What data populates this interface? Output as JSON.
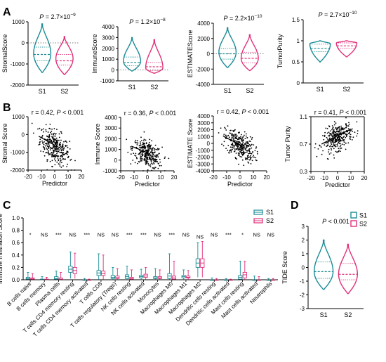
{
  "colors": {
    "S1": "#1a8c96",
    "S2": "#e0307a"
  },
  "panels": {
    "A": "A",
    "B": "B",
    "C": "C",
    "D": "D"
  },
  "chart_data": [
    {
      "type": "violin",
      "panel": "A",
      "ylabel": "StromalScore",
      "annotation_prefix": "P",
      "annotation_value": " = 2.7×10",
      "annotation_exp": "−9",
      "categories": [
        "S1",
        "S2"
      ],
      "ylim": [
        -2000,
        1000
      ],
      "yticks": [
        -2000,
        -1000,
        0,
        1000
      ],
      "reference_line": 0,
      "violins": [
        {
          "group": "S1",
          "min": -1400,
          "q1": -850,
          "median": -550,
          "q3": -200,
          "max": 900,
          "mode": -500
        },
        {
          "group": "S2",
          "min": -1500,
          "q1": -1050,
          "median": -850,
          "q3": -550,
          "max": 300,
          "mode": -750
        }
      ]
    },
    {
      "type": "violin",
      "panel": "A",
      "ylabel": "ImmuneScore",
      "annotation_prefix": "P",
      "annotation_value": " = 1.2×10",
      "annotation_exp": "−8",
      "categories": [
        "S1",
        "S2"
      ],
      "ylim": [
        -1000,
        4000
      ],
      "yticks": [
        -1000,
        0,
        1000,
        2000,
        3000,
        4000
      ],
      "reference_line": 0,
      "violins": [
        {
          "group": "S1",
          "min": -100,
          "q1": 400,
          "median": 700,
          "q3": 1200,
          "max": 3000,
          "mode": 800
        },
        {
          "group": "S2",
          "min": -300,
          "q1": -50,
          "median": 300,
          "q3": 700,
          "max": 2800,
          "mode": 200
        }
      ]
    },
    {
      "type": "violin",
      "panel": "A",
      "ylabel": "ESTIMATEScore",
      "annotation_prefix": "P",
      "annotation_value": " = 2.2×10",
      "annotation_exp": "−10",
      "categories": [
        "S1",
        "S2"
      ],
      "ylim": [
        -4000,
        4000
      ],
      "yticks": [
        -4000,
        -2000,
        0,
        2000,
        4000
      ],
      "reference_line": 0,
      "violins": [
        {
          "group": "S1",
          "min": -1800,
          "q1": -700,
          "median": 0,
          "q3": 700,
          "max": 3400,
          "mode": 200
        },
        {
          "group": "S2",
          "min": -2200,
          "q1": -1200,
          "median": -600,
          "q3": 200,
          "max": 2500,
          "mode": -600
        }
      ]
    },
    {
      "type": "violin",
      "panel": "A",
      "ylabel": "TumorPurity",
      "annotation_prefix": "P",
      "annotation_value": " = 2.7×10",
      "annotation_exp": "−10",
      "categories": [
        "S1",
        "S2"
      ],
      "ylim": [
        0,
        1.5
      ],
      "yticks": [
        0,
        0.5,
        1.0,
        1.5
      ],
      "reference_line": null,
      "violins": [
        {
          "group": "S1",
          "min": 0.5,
          "q1": 0.74,
          "median": 0.82,
          "q3": 0.92,
          "max": 1.0,
          "mode": 0.93
        },
        {
          "group": "S2",
          "min": 0.62,
          "q1": 0.82,
          "median": 0.88,
          "q3": 0.95,
          "max": 1.0,
          "mode": 0.95
        }
      ]
    },
    {
      "type": "scatter",
      "panel": "B",
      "ylabel": "Stromal Score",
      "xlabel": "Predictor",
      "annotation_left": "r = 0.42, ",
      "annotation_p": "P",
      "annotation_right": " < 0.001",
      "xlim": [
        -20,
        20
      ],
      "xticks": [
        -20,
        -10,
        0,
        10,
        20
      ],
      "ylim": [
        -2000,
        1000
      ],
      "yticks": [
        -2000,
        -1000,
        0,
        1000
      ],
      "trend": {
        "x0": -12,
        "y0": -100,
        "x1": 0,
        "y1": -600
      },
      "cloud": {
        "cx": 0,
        "sx": 5.5,
        "cy": -700,
        "sy": 450,
        "slope": -42,
        "n": 320
      }
    },
    {
      "type": "scatter",
      "panel": "B",
      "ylabel": "Immune Score",
      "xlabel": "Predictor",
      "annotation_left": "r = 0.36, ",
      "annotation_p": "P",
      "annotation_right": " < 0.001",
      "xlim": [
        -20,
        20
      ],
      "xticks": [
        -20,
        -10,
        0,
        10,
        20
      ],
      "ylim": [
        -1000,
        4000
      ],
      "yticks": [
        -1000,
        0,
        1000,
        2000,
        3000,
        4000
      ],
      "trend": {
        "x0": -12,
        "y0": 1300,
        "x1": 0,
        "y1": 700
      },
      "cloud": {
        "cx": 0,
        "sx": 5.5,
        "cy": 550,
        "sy": 600,
        "slope": -50,
        "n": 320
      }
    },
    {
      "type": "scatter",
      "panel": "B",
      "ylabel": "ESTIMATE Score",
      "xlabel": "Predictor",
      "annotation_left": "r = 0.42, ",
      "annotation_p": "P",
      "annotation_right": " < 0.001",
      "xlim": [
        -20,
        20
      ],
      "xticks": [
        -20,
        -10,
        0,
        10,
        20
      ],
      "ylim": [
        -4000,
        4000
      ],
      "yticks": [
        -4000,
        -3000,
        -2000,
        -1000,
        0,
        1000,
        2000,
        3000,
        4000
      ],
      "trend": {
        "x0": -12,
        "y0": 1000,
        "x1": 0,
        "y1": -200
      },
      "cloud": {
        "cx": 0,
        "sx": 5.5,
        "cy": -300,
        "sy": 1000,
        "slope": -100,
        "n": 320
      }
    },
    {
      "type": "scatter",
      "panel": "B",
      "ylabel": "Tumor Purity",
      "xlabel": "Predictor",
      "annotation_left": "r = 0.41, ",
      "annotation_p": "P",
      "annotation_right": " < 0.001",
      "xlim": [
        -20,
        20
      ],
      "xticks": [
        -20,
        -10,
        0,
        10,
        20
      ],
      "ylim": [
        0.3,
        1.1
      ],
      "yticks": [
        0.3,
        0.7,
        1.1
      ],
      "yticklabels": [
        "0.3",
        "0.7",
        "1.1"
      ],
      "trend": {
        "x0": -12,
        "y0": 0.7,
        "x1": 10,
        "y1": 0.92
      },
      "cloud": {
        "cx": 0,
        "sx": 5.5,
        "cy": 0.8,
        "sy": 0.09,
        "slope": 0.008,
        "n": 320
      }
    },
    {
      "type": "boxplot",
      "panel": "C",
      "ylabel": "Immune Infiltration Score",
      "ylim": [
        0,
        1.0
      ],
      "yticks": [
        0,
        0.2,
        0.4,
        0.6,
        0.8,
        1.0
      ],
      "yticklabels": [
        "0.0",
        "0.2",
        "0.4",
        "0.6",
        "0.8",
        "1.0"
      ],
      "legend": [
        "S1",
        "S2"
      ],
      "categories": [
        "B cells naive",
        "B cells memory",
        "Plasma cells",
        "T cells CD4 memory resting",
        "T cells CD4 memory activated",
        "T cells CD8",
        "T cells regulatory (Tregs)",
        "NK cells resting",
        "NK cells activated",
        "Monocytes",
        "Macrophages M0",
        "Macrophages M1",
        "Macrophages M2",
        "Dendritic cells resting",
        "Dendritic cells activated",
        "Mast cells resting",
        "Mast cells activated",
        "Neutrophils"
      ],
      "significance": [
        "*",
        "NS",
        "***",
        "NS",
        "***",
        "NS",
        "NS",
        "***",
        "***",
        "NS",
        "***",
        "NS",
        "NS",
        "NS",
        "***",
        "*",
        "NS",
        "NS"
      ],
      "boxes": {
        "S1": [
          [
            0,
            0.01,
            0.02,
            0.04,
            0.12
          ],
          [
            0,
            0,
            0,
            0.01,
            0.05
          ],
          [
            0,
            0.01,
            0.02,
            0.05,
            0.14
          ],
          [
            0.02,
            0.12,
            0.17,
            0.22,
            0.45
          ],
          [
            0,
            0,
            0,
            0,
            0.02
          ],
          [
            0,
            0.07,
            0.11,
            0.15,
            0.42
          ],
          [
            0,
            0.02,
            0.04,
            0.07,
            0.2
          ],
          [
            0,
            0.02,
            0.05,
            0.08,
            0.22
          ],
          [
            0,
            0.03,
            0.05,
            0.07,
            0.17
          ],
          [
            0,
            0.02,
            0.03,
            0.05,
            0.18
          ],
          [
            0,
            0.02,
            0.06,
            0.1,
            0.42
          ],
          [
            0,
            0.03,
            0.05,
            0.07,
            0.16
          ],
          [
            0.04,
            0.2,
            0.27,
            0.34,
            0.6
          ],
          [
            0,
            0,
            0,
            0,
            0.03
          ],
          [
            0,
            0,
            0,
            0,
            0.02
          ],
          [
            0,
            0.01,
            0.04,
            0.07,
            0.3
          ],
          [
            0,
            0,
            0,
            0,
            0.06
          ],
          [
            0,
            0,
            0,
            0,
            0.02
          ]
        ],
        "S2": [
          [
            0,
            0.01,
            0.015,
            0.03,
            0.1
          ],
          [
            0,
            0,
            0,
            0.01,
            0.04
          ],
          [
            0,
            0.005,
            0.01,
            0.03,
            0.12
          ],
          [
            0.02,
            0.1,
            0.15,
            0.2,
            0.43
          ],
          [
            0,
            0,
            0,
            0,
            0.01
          ],
          [
            0,
            0.07,
            0.1,
            0.14,
            0.4
          ],
          [
            0,
            0.02,
            0.035,
            0.06,
            0.18
          ],
          [
            0,
            0.01,
            0.02,
            0.04,
            0.16
          ],
          [
            0,
            0.04,
            0.06,
            0.09,
            0.2
          ],
          [
            0,
            0.02,
            0.03,
            0.05,
            0.16
          ],
          [
            0,
            0.01,
            0.03,
            0.06,
            0.3
          ],
          [
            0,
            0.03,
            0.04,
            0.06,
            0.15
          ],
          [
            0.04,
            0.2,
            0.27,
            0.34,
            0.62
          ],
          [
            0,
            0,
            0,
            0,
            0.02
          ],
          [
            0,
            0,
            0,
            0,
            0.01
          ],
          [
            0,
            0.03,
            0.08,
            0.12,
            0.3
          ],
          [
            0,
            0,
            0,
            0,
            0.05
          ],
          [
            0,
            0,
            0,
            0,
            0.02
          ]
        ]
      }
    },
    {
      "type": "violin",
      "panel": "D",
      "ylabel": "TIDE Score",
      "annotation_prefix": "P",
      "annotation_value": " < 0.001",
      "annotation_exp": "",
      "categories": [
        "S1",
        "S2"
      ],
      "ylim": [
        -3,
        3
      ],
      "yticks": [
        -3,
        -2,
        -1,
        0,
        1,
        2,
        3
      ],
      "reference_line": null,
      "legend": [
        "S1",
        "S2"
      ],
      "violins": [
        {
          "group": "S1",
          "min": -1.6,
          "q1": -0.8,
          "median": -0.3,
          "q3": 0.4,
          "max": 2.0,
          "mode": -0.3
        },
        {
          "group": "S2",
          "min": -1.9,
          "q1": -0.9,
          "median": -0.5,
          "q3": 0.3,
          "max": 1.7,
          "mode": -0.5
        }
      ]
    }
  ]
}
